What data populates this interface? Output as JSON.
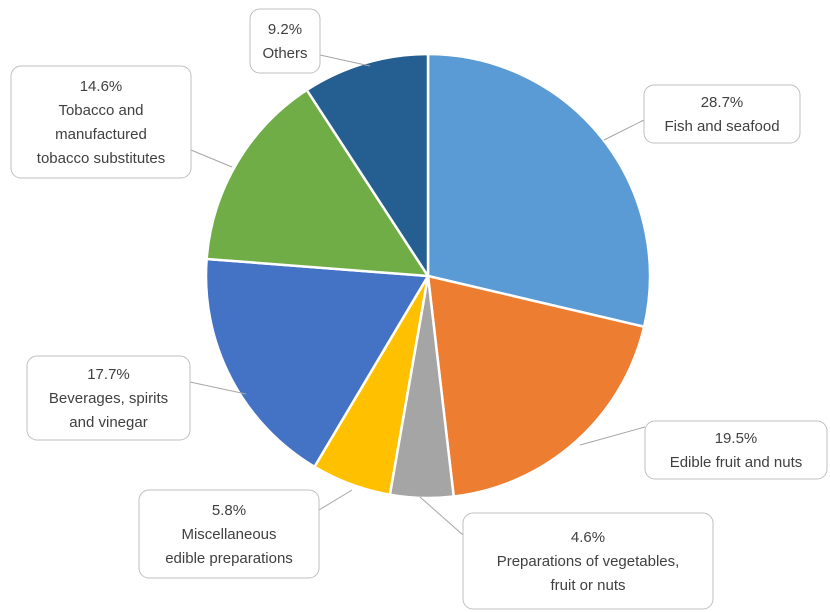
{
  "chart_data": {
    "type": "pie",
    "title": "",
    "slices": [
      {
        "label": "Fish and seafood",
        "value": 28.7,
        "value_label": "28.7%",
        "label_lines": [
          "Fish and seafood"
        ],
        "color": "#5B9BD5"
      },
      {
        "label": "Edible fruit and nuts",
        "value": 19.5,
        "value_label": "19.5%",
        "label_lines": [
          "Edible fruit and nuts"
        ],
        "color": "#ED7D31"
      },
      {
        "label": "Preparations of vegetables, fruit or nuts",
        "value": 4.6,
        "value_label": "4.6%",
        "label_lines": [
          "Preparations of vegetables,",
          "fruit or nuts"
        ],
        "color": "#A5A5A5"
      },
      {
        "label": "Miscellaneous edible preparations",
        "value": 5.8,
        "value_label": "5.8%",
        "label_lines": [
          "Miscellaneous",
          "edible preparations"
        ],
        "color": "#FFC000"
      },
      {
        "label": "Beverages, spirits and vinegar",
        "value": 17.7,
        "value_label": "17.7%",
        "label_lines": [
          "Beverages, spirits",
          "and vinegar"
        ],
        "color": "#4472C4"
      },
      {
        "label": "Tobacco and manufactured tobacco substitutes",
        "value": 14.6,
        "value_label": "14.6%",
        "label_lines": [
          "Tobacco and",
          "manufactured",
          "tobacco substitutes"
        ],
        "color": "#70AD47"
      },
      {
        "label": "Others",
        "value": 9.2,
        "value_label": "9.2%",
        "label_lines": [
          "Others"
        ],
        "color": "#255E91"
      }
    ]
  }
}
